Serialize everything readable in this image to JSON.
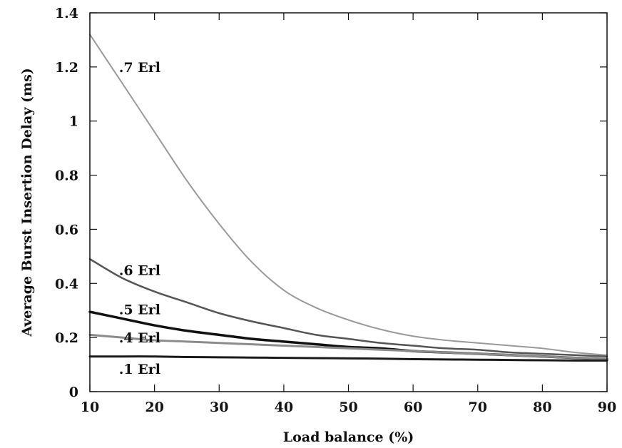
{
  "chart_data": {
    "type": "line",
    "title": "",
    "xlabel": "Load balance (%)",
    "ylabel": "Average Burst Insertion Delay (ms)",
    "xlim": [
      10,
      90
    ],
    "ylim": [
      0,
      1.4
    ],
    "grid": false,
    "legend": "none (inline labels)",
    "x_ticks": [
      "10",
      "20",
      "30",
      "40",
      "50",
      "60",
      "70",
      "80",
      "90"
    ],
    "y_ticks": [
      "0",
      "0.2",
      "0.4",
      "0.6",
      "0.8",
      "1",
      "1.2",
      "1.4"
    ],
    "x": [
      10,
      15,
      20,
      25,
      30,
      35,
      40,
      45,
      50,
      55,
      60,
      65,
      70,
      75,
      80,
      85,
      90
    ],
    "series": [
      {
        "name": ".7 Erl",
        "color": "#9a9a9a",
        "stroke_width": 2,
        "values": [
          1.32,
          1.14,
          0.96,
          0.78,
          0.62,
          0.48,
          0.375,
          0.31,
          0.265,
          0.23,
          0.205,
          0.19,
          0.18,
          0.17,
          0.16,
          0.145,
          0.135
        ]
      },
      {
        "name": ".6 Erl",
        "color": "#555555",
        "stroke_width": 2.5,
        "values": [
          0.49,
          0.42,
          0.37,
          0.33,
          0.29,
          0.26,
          0.235,
          0.21,
          0.195,
          0.18,
          0.17,
          0.16,
          0.155,
          0.145,
          0.14,
          0.135,
          0.13
        ]
      },
      {
        "name": ".5 Erl",
        "color": "#111111",
        "stroke_width": 3.5,
        "values": [
          0.295,
          0.27,
          0.245,
          0.225,
          0.21,
          0.195,
          0.185,
          0.175,
          0.165,
          0.16,
          0.15,
          0.145,
          0.14,
          0.135,
          0.13,
          0.125,
          0.12
        ]
      },
      {
        "name": ".4 Erl",
        "color": "#8c8c8c",
        "stroke_width": 3,
        "values": [
          0.21,
          0.2,
          0.19,
          0.185,
          0.18,
          0.175,
          0.17,
          0.165,
          0.16,
          0.155,
          0.15,
          0.145,
          0.14,
          0.135,
          0.13,
          0.125,
          0.12
        ]
      },
      {
        "name": ".1 Erl",
        "color": "#1a1a1a",
        "stroke_width": 3,
        "values": [
          0.13,
          0.13,
          0.13,
          0.128,
          0.127,
          0.126,
          0.125,
          0.124,
          0.123,
          0.122,
          0.12,
          0.119,
          0.118,
          0.117,
          0.116,
          0.115,
          0.115
        ]
      }
    ],
    "labels": [
      {
        "text": ".7 Erl",
        "x": 14.5,
        "y": 1.2
      },
      {
        "text": ".6 Erl",
        "x": 14.5,
        "y": 0.45
      },
      {
        "text": ".5 Erl",
        "x": 14.5,
        "y": 0.305
      },
      {
        "text": ".4 Erl",
        "x": 14.5,
        "y": 0.2
      },
      {
        "text": ".1 Erl",
        "x": 14.5,
        "y": 0.085
      }
    ]
  }
}
